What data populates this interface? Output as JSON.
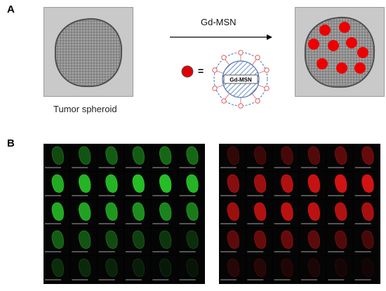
{
  "panel_a": {
    "label": "A",
    "arrow_label": "Gd-MSN",
    "caption": "Tumor spheroid",
    "legend_equals": "=",
    "particle_core_label": "Gd-MSN",
    "colors": {
      "particle": "#e00000",
      "shell": "#4a73b8",
      "spheroid": "#8a8a8a"
    }
  },
  "panel_b": {
    "label": "B",
    "rows": 5,
    "cols": 6,
    "green_intensity": [
      [
        0.35,
        0.4,
        0.45,
        0.45,
        0.5,
        0.5
      ],
      [
        0.85,
        0.9,
        0.9,
        0.95,
        0.95,
        0.9
      ],
      [
        0.85,
        0.8,
        0.75,
        0.7,
        0.65,
        0.6
      ],
      [
        0.45,
        0.4,
        0.35,
        0.3,
        0.25,
        0.2
      ],
      [
        0.2,
        0.18,
        0.15,
        0.12,
        0.1,
        0.08
      ]
    ],
    "red_intensity": [
      [
        0.2,
        0.25,
        0.3,
        0.35,
        0.4,
        0.45
      ],
      [
        0.6,
        0.7,
        0.8,
        0.9,
        0.95,
        0.95
      ],
      [
        0.7,
        0.8,
        0.85,
        0.85,
        0.8,
        0.75
      ],
      [
        0.4,
        0.45,
        0.45,
        0.4,
        0.35,
        0.3
      ],
      [
        0.15,
        0.15,
        0.12,
        0.1,
        0.08,
        0.06
      ]
    ]
  }
}
